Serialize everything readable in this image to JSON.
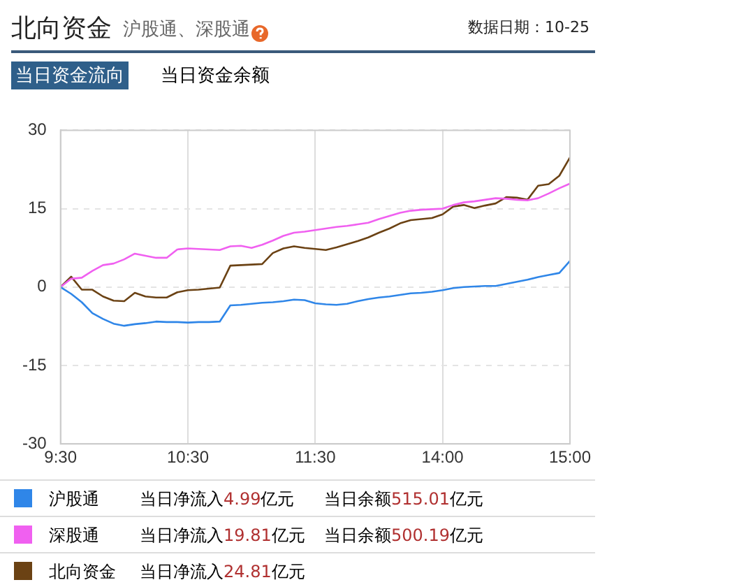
{
  "chart_data": {
    "type": "line",
    "title": "北向资金",
    "subtitle": "沪股通、深股通",
    "annotations": [
      "数据日期：10-25",
      "当日资金流向",
      "当日资金余额",
      "当日净流入4.99亿元",
      "当日余额515.01亿元",
      "当日净流入19.81亿元",
      "当日余额500.19亿元",
      "当日净流入24.81亿元"
    ],
    "categories": [
      "9:30",
      null,
      null,
      null,
      null,
      null,
      null,
      null,
      null,
      null,
      null,
      null,
      "10:30",
      null,
      null,
      null,
      null,
      null,
      null,
      null,
      null,
      null,
      null,
      null,
      "11:30",
      null,
      null,
      null,
      null,
      null,
      null,
      null,
      null,
      null,
      null,
      null,
      "14:00",
      null,
      null,
      null,
      null,
      null,
      null,
      null,
      null,
      null,
      null,
      null,
      "15:00"
    ],
    "ylim": [
      -30,
      30
    ],
    "yticks": [
      -30,
      -15,
      0,
      15,
      30
    ],
    "grid": true,
    "legend": "bottom",
    "marker": "none",
    "line_style": "solid",
    "series": [
      {
        "name": "沪股通",
        "color": "#2f86e8",
        "values": [
          0,
          -1.3,
          -2.9,
          -5.0,
          -6.1,
          -7.0,
          -7.4,
          -7.1,
          -6.9,
          -6.6,
          -6.7,
          -6.7,
          -6.8,
          -6.7,
          -6.7,
          -6.6,
          -3.5,
          -3.4,
          -3.2,
          -3.0,
          -2.9,
          -2.7,
          -2.4,
          -2.5,
          -3.1,
          -3.3,
          -3.4,
          -3.2,
          -2.7,
          -2.3,
          -2.0,
          -1.8,
          -1.5,
          -1.2,
          -1.1,
          -0.9,
          -0.6,
          -0.2,
          0,
          0.1,
          0.2,
          0.2,
          0.6,
          1.0,
          1.4,
          1.9,
          2.3,
          2.7,
          5.0
        ]
      },
      {
        "name": "深股通",
        "color": "#f060f0",
        "values": [
          0,
          1.6,
          1.8,
          3.1,
          4.2,
          4.5,
          5.3,
          6.4,
          6.0,
          5.6,
          5.6,
          7.2,
          7.4,
          7.3,
          7.2,
          7.1,
          7.8,
          7.9,
          7.5,
          8.1,
          8.9,
          9.8,
          10.4,
          10.6,
          10.9,
          11.2,
          11.5,
          11.7,
          12.0,
          12.3,
          13.0,
          13.6,
          14.2,
          14.6,
          14.8,
          14.9,
          15.0,
          15.7,
          16.2,
          16.4,
          16.7,
          17.0,
          16.9,
          16.7,
          16.6,
          17.0,
          17.9,
          18.9,
          19.8
        ]
      },
      {
        "name": "北向资金",
        "color": "#6b4214",
        "values": [
          0,
          2.0,
          -0.5,
          -0.5,
          -1.8,
          -2.6,
          -2.7,
          -1.1,
          -1.8,
          -2.0,
          -2.0,
          -1.0,
          -0.6,
          -0.5,
          -0.3,
          -0.1,
          4.1,
          4.2,
          4.3,
          4.4,
          6.5,
          7.4,
          7.8,
          7.5,
          7.3,
          7.1,
          7.6,
          8.2,
          8.8,
          9.5,
          10.4,
          11.2,
          12.2,
          12.8,
          13.0,
          13.2,
          13.9,
          15.4,
          15.7,
          15.1,
          15.6,
          16.0,
          17.2,
          17.1,
          16.7,
          19.4,
          19.7,
          21.3,
          24.8
        ]
      }
    ]
  }
}
